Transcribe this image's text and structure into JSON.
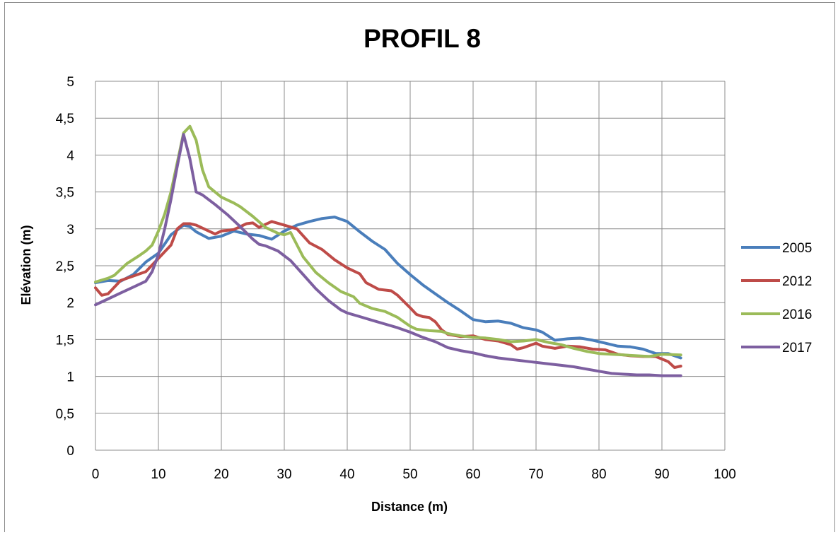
{
  "chart_data": {
    "type": "line",
    "title": "PROFIL 8",
    "xlabel": "Distance (m)",
    "ylabel": "Elévation (m)",
    "xlim": [
      0,
      100
    ],
    "ylim": [
      0,
      5
    ],
    "x_ticks": [
      "0",
      "10",
      "20",
      "30",
      "40",
      "50",
      "60",
      "70",
      "80",
      "90",
      "100"
    ],
    "y_ticks": [
      "0",
      "0,5",
      "1",
      "1,5",
      "2",
      "2,5",
      "3",
      "3,5",
      "4",
      "4,5",
      "5"
    ],
    "grid": true,
    "legend_position": "right",
    "series": [
      {
        "name": "2005",
        "color": "#4a7ebb",
        "points": [
          [
            0,
            2.27
          ],
          [
            2,
            2.3
          ],
          [
            4,
            2.29
          ],
          [
            6,
            2.38
          ],
          [
            8,
            2.55
          ],
          [
            10,
            2.67
          ],
          [
            12,
            2.92
          ],
          [
            14,
            3.05
          ],
          [
            15,
            3.03
          ],
          [
            16,
            2.96
          ],
          [
            18,
            2.87
          ],
          [
            20,
            2.9
          ],
          [
            22,
            2.97
          ],
          [
            24,
            2.93
          ],
          [
            26,
            2.91
          ],
          [
            28,
            2.86
          ],
          [
            30,
            2.97
          ],
          [
            32,
            3.05
          ],
          [
            34,
            3.1
          ],
          [
            36,
            3.14
          ],
          [
            38,
            3.16
          ],
          [
            40,
            3.1
          ],
          [
            42,
            2.96
          ],
          [
            44,
            2.83
          ],
          [
            46,
            2.72
          ],
          [
            48,
            2.53
          ],
          [
            50,
            2.38
          ],
          [
            52,
            2.24
          ],
          [
            54,
            2.12
          ],
          [
            56,
            2.0
          ],
          [
            58,
            1.89
          ],
          [
            60,
            1.77
          ],
          [
            62,
            1.74
          ],
          [
            64,
            1.75
          ],
          [
            66,
            1.72
          ],
          [
            68,
            1.66
          ],
          [
            70,
            1.63
          ],
          [
            71,
            1.6
          ],
          [
            73,
            1.49
          ],
          [
            75,
            1.51
          ],
          [
            77,
            1.52
          ],
          [
            79,
            1.49
          ],
          [
            81,
            1.45
          ],
          [
            83,
            1.41
          ],
          [
            85,
            1.4
          ],
          [
            87,
            1.37
          ],
          [
            89,
            1.31
          ],
          [
            91,
            1.31
          ],
          [
            93,
            1.25
          ]
        ]
      },
      {
        "name": "2012",
        "color": "#be4b48",
        "points": [
          [
            0,
            2.2
          ],
          [
            1,
            2.1
          ],
          [
            2,
            2.12
          ],
          [
            4,
            2.3
          ],
          [
            6,
            2.36
          ],
          [
            8,
            2.42
          ],
          [
            10,
            2.6
          ],
          [
            12,
            2.78
          ],
          [
            13,
            3.0
          ],
          [
            14,
            3.07
          ],
          [
            15,
            3.07
          ],
          [
            16,
            3.05
          ],
          [
            18,
            2.97
          ],
          [
            19,
            2.93
          ],
          [
            20,
            2.97
          ],
          [
            22,
            2.99
          ],
          [
            24,
            3.07
          ],
          [
            25,
            3.08
          ],
          [
            26,
            3.02
          ],
          [
            28,
            3.1
          ],
          [
            30,
            3.05
          ],
          [
            32,
            3.0
          ],
          [
            34,
            2.81
          ],
          [
            36,
            2.72
          ],
          [
            38,
            2.58
          ],
          [
            40,
            2.47
          ],
          [
            42,
            2.39
          ],
          [
            43,
            2.27
          ],
          [
            45,
            2.18
          ],
          [
            47,
            2.16
          ],
          [
            48,
            2.1
          ],
          [
            50,
            1.93
          ],
          [
            51,
            1.84
          ],
          [
            52,
            1.81
          ],
          [
            53,
            1.8
          ],
          [
            54,
            1.74
          ],
          [
            55,
            1.63
          ],
          [
            56,
            1.57
          ],
          [
            58,
            1.54
          ],
          [
            60,
            1.55
          ],
          [
            62,
            1.5
          ],
          [
            64,
            1.48
          ],
          [
            66,
            1.43
          ],
          [
            67,
            1.37
          ],
          [
            68,
            1.39
          ],
          [
            70,
            1.45
          ],
          [
            71,
            1.41
          ],
          [
            73,
            1.38
          ],
          [
            75,
            1.41
          ],
          [
            77,
            1.4
          ],
          [
            79,
            1.37
          ],
          [
            81,
            1.36
          ],
          [
            83,
            1.3
          ],
          [
            85,
            1.28
          ],
          [
            87,
            1.27
          ],
          [
            89,
            1.27
          ],
          [
            91,
            1.2
          ],
          [
            92,
            1.12
          ],
          [
            93,
            1.14
          ]
        ]
      },
      {
        "name": "2016",
        "color": "#9bbb59",
        "points": [
          [
            0,
            2.28
          ],
          [
            2,
            2.33
          ],
          [
            3,
            2.37
          ],
          [
            5,
            2.53
          ],
          [
            7,
            2.64
          ],
          [
            8,
            2.7
          ],
          [
            9,
            2.78
          ],
          [
            10,
            2.97
          ],
          [
            11,
            3.2
          ],
          [
            12,
            3.5
          ],
          [
            13,
            3.9
          ],
          [
            14,
            4.3
          ],
          [
            15,
            4.39
          ],
          [
            16,
            4.2
          ],
          [
            17,
            3.8
          ],
          [
            18,
            3.57
          ],
          [
            20,
            3.43
          ],
          [
            22,
            3.35
          ],
          [
            23,
            3.3
          ],
          [
            25,
            3.17
          ],
          [
            27,
            3.02
          ],
          [
            29,
            2.94
          ],
          [
            30,
            2.92
          ],
          [
            31,
            2.95
          ],
          [
            33,
            2.62
          ],
          [
            35,
            2.41
          ],
          [
            37,
            2.27
          ],
          [
            39,
            2.15
          ],
          [
            41,
            2.08
          ],
          [
            42,
            1.99
          ],
          [
            44,
            1.92
          ],
          [
            46,
            1.88
          ],
          [
            48,
            1.8
          ],
          [
            50,
            1.68
          ],
          [
            51,
            1.64
          ],
          [
            53,
            1.62
          ],
          [
            55,
            1.61
          ],
          [
            56,
            1.58
          ],
          [
            58,
            1.55
          ],
          [
            60,
            1.53
          ],
          [
            62,
            1.52
          ],
          [
            64,
            1.5
          ],
          [
            66,
            1.47
          ],
          [
            68,
            1.48
          ],
          [
            70,
            1.5
          ],
          [
            72,
            1.46
          ],
          [
            74,
            1.43
          ],
          [
            76,
            1.38
          ],
          [
            78,
            1.34
          ],
          [
            80,
            1.31
          ],
          [
            82,
            1.3
          ],
          [
            84,
            1.29
          ],
          [
            86,
            1.28
          ],
          [
            88,
            1.27
          ],
          [
            90,
            1.3
          ],
          [
            93,
            1.29
          ]
        ]
      },
      {
        "name": "2017",
        "color": "#7d5fa0",
        "points": [
          [
            0,
            1.97
          ],
          [
            2,
            2.05
          ],
          [
            4,
            2.13
          ],
          [
            6,
            2.21
          ],
          [
            8,
            2.29
          ],
          [
            9,
            2.42
          ],
          [
            10,
            2.65
          ],
          [
            11,
            3.0
          ],
          [
            12,
            3.4
          ],
          [
            13,
            3.85
          ],
          [
            14,
            4.28
          ],
          [
            15,
            3.95
          ],
          [
            16,
            3.5
          ],
          [
            17,
            3.46
          ],
          [
            19,
            3.33
          ],
          [
            21,
            3.19
          ],
          [
            23,
            3.03
          ],
          [
            25,
            2.86
          ],
          [
            26,
            2.79
          ],
          [
            27,
            2.77
          ],
          [
            29,
            2.7
          ],
          [
            31,
            2.57
          ],
          [
            33,
            2.38
          ],
          [
            35,
            2.19
          ],
          [
            37,
            2.03
          ],
          [
            39,
            1.9
          ],
          [
            40,
            1.86
          ],
          [
            42,
            1.81
          ],
          [
            44,
            1.76
          ],
          [
            46,
            1.71
          ],
          [
            48,
            1.66
          ],
          [
            50,
            1.6
          ],
          [
            52,
            1.53
          ],
          [
            54,
            1.47
          ],
          [
            56,
            1.39
          ],
          [
            58,
            1.35
          ],
          [
            60,
            1.32
          ],
          [
            62,
            1.28
          ],
          [
            64,
            1.25
          ],
          [
            66,
            1.23
          ],
          [
            68,
            1.21
          ],
          [
            70,
            1.19
          ],
          [
            72,
            1.17
          ],
          [
            74,
            1.15
          ],
          [
            76,
            1.13
          ],
          [
            78,
            1.1
          ],
          [
            80,
            1.07
          ],
          [
            82,
            1.04
          ],
          [
            84,
            1.03
          ],
          [
            86,
            1.02
          ],
          [
            88,
            1.02
          ],
          [
            90,
            1.01
          ],
          [
            93,
            1.01
          ]
        ]
      }
    ]
  }
}
